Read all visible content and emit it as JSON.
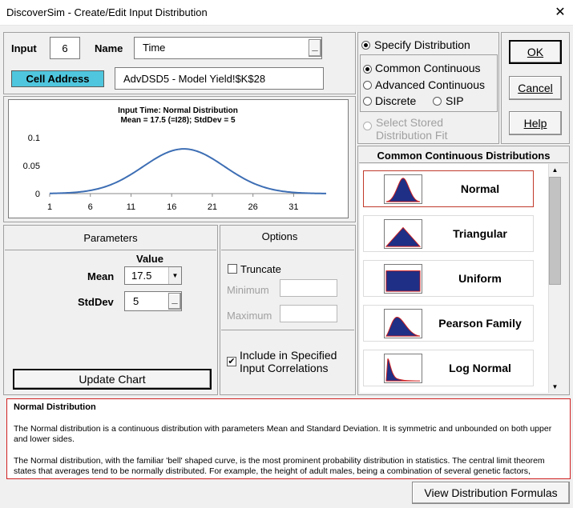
{
  "window": {
    "title": "DiscoverSim - Create/Edit Input Distribution",
    "close": "✕"
  },
  "input": {
    "input_label": "Input",
    "input_value": "6",
    "name_label": "Name",
    "name_value": "Time",
    "name_btn": "_",
    "cell_address_label": "Cell Address",
    "cell_address_value": "AdvDSD5 - Model Yield!$K$28"
  },
  "chart_data": {
    "type": "line",
    "title": "Input Time: Normal Distribution",
    "subtitle": "Mean = 17.5 (=I28); StdDev = 5",
    "x_ticks": [
      "1",
      "6",
      "11",
      "16",
      "21",
      "26",
      "31"
    ],
    "y_ticks": [
      "0.1",
      "0.05",
      "0"
    ],
    "xlim": [
      1,
      35
    ],
    "ylim": [
      0,
      0.1
    ],
    "mean": 17.5,
    "sd": 5,
    "series_color": "#3d6eb4",
    "grid": false
  },
  "parameters": {
    "header": "Parameters",
    "value_header": "Value",
    "mean_label": "Mean",
    "mean_value": "17.5",
    "stddev_label": "StdDev",
    "stddev_value": "5",
    "stddev_btn": "_",
    "update_btn": "Update Chart"
  },
  "options": {
    "header": "Options",
    "truncate_label": "Truncate",
    "minimum_label": "Minimum",
    "maximum_label": "Maximum",
    "include_check": "✔",
    "include_line1": "Include in Specified",
    "include_line2": "Input Correlations"
  },
  "specify": {
    "specify_label": "Specify Distribution",
    "common_label": "Common Continuous",
    "advanced_label": "Advanced Continuous",
    "discrete_label": "Discrete",
    "sip_label": "SIP",
    "stored_line1": "Select Stored",
    "stored_line2": "Distribution Fit"
  },
  "buttons": {
    "ok": "OK",
    "cancel": "Cancel",
    "help": "Help"
  },
  "distributions": {
    "header": "Common Continuous Distributions",
    "items": [
      {
        "name": "Normal",
        "selected": true
      },
      {
        "name": "Triangular",
        "selected": false
      },
      {
        "name": "Uniform",
        "selected": false
      },
      {
        "name": "Pearson Family",
        "selected": false
      },
      {
        "name": "Log Normal",
        "selected": false
      }
    ],
    "scroll_up": "▲",
    "scroll_down": "▼",
    "thumb_fill": "#1f2f85",
    "thumb_edge": "#d02020"
  },
  "description": {
    "title": "Normal Distribution",
    "para1": "The Normal distribution is a continuous distribution with parameters Mean and Standard Deviation. It is symmetric and unbounded on both upper and lower sides.",
    "para2": "The Normal distribution, with the familiar 'bell' shaped curve, is the most prominent probability distribution in statistics. The central limit theorem states that averages tend to be normally distributed. For example, the height of adult males, being a combination of several genetic factors,"
  },
  "formulas_btn": "View Distribution Formulas"
}
